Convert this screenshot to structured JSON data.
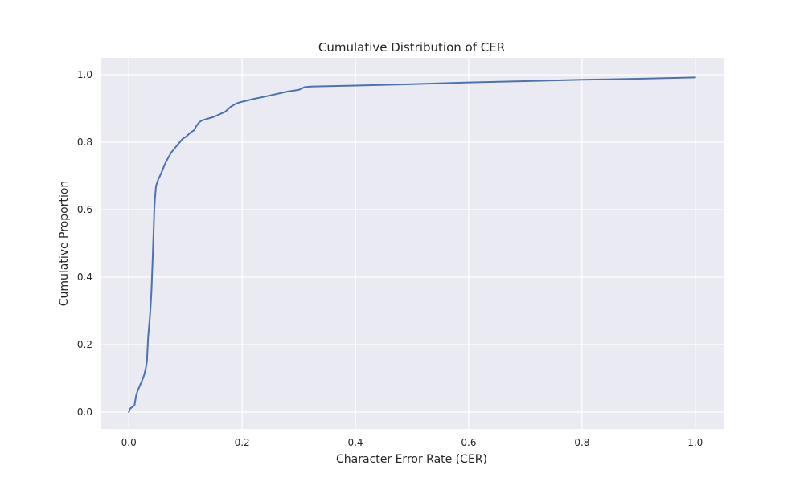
{
  "chart_data": {
    "type": "line",
    "title": "Cumulative Distribution of CER",
    "xlabel": "Character Error Rate (CER)",
    "ylabel": "Cumulative Proportion",
    "xlim": [
      -0.05,
      1.05
    ],
    "ylim": [
      -0.05,
      1.05
    ],
    "xticks": [
      0.0,
      0.2,
      0.4,
      0.6,
      0.8,
      1.0
    ],
    "xtick_labels": [
      "0.0",
      "0.2",
      "0.4",
      "0.6",
      "0.8",
      "1.0"
    ],
    "yticks": [
      0.0,
      0.2,
      0.4,
      0.6,
      0.8,
      1.0
    ],
    "ytick_labels": [
      "0.0",
      "0.2",
      "0.4",
      "0.6",
      "0.8",
      "1.0"
    ],
    "grid": true,
    "colors": {
      "background": "#eaeaf2",
      "grid": "#ffffff",
      "line": "#4c72b0"
    },
    "series": [
      {
        "x": [
          0.0,
          0.002,
          0.01,
          0.013,
          0.016,
          0.02,
          0.025,
          0.027,
          0.03,
          0.032,
          0.034,
          0.036,
          0.038,
          0.04,
          0.042,
          0.044,
          0.045,
          0.046,
          0.047,
          0.048,
          0.05,
          0.052,
          0.055,
          0.06,
          0.065,
          0.07,
          0.075,
          0.08,
          0.085,
          0.09,
          0.095,
          0.1,
          0.11,
          0.115,
          0.12,
          0.125,
          0.13,
          0.15,
          0.17,
          0.18,
          0.185,
          0.19,
          0.2,
          0.22,
          0.24,
          0.28,
          0.3,
          0.31,
          0.32,
          0.4,
          0.5,
          0.6,
          0.7,
          0.8,
          0.9,
          1.0
        ],
        "y": [
          0.0,
          0.01,
          0.02,
          0.05,
          0.065,
          0.08,
          0.1,
          0.11,
          0.13,
          0.15,
          0.22,
          0.26,
          0.3,
          0.36,
          0.45,
          0.55,
          0.6,
          0.63,
          0.65,
          0.67,
          0.68,
          0.69,
          0.7,
          0.72,
          0.74,
          0.755,
          0.77,
          0.78,
          0.79,
          0.8,
          0.81,
          0.815,
          0.83,
          0.835,
          0.85,
          0.86,
          0.865,
          0.875,
          0.89,
          0.905,
          0.91,
          0.915,
          0.92,
          0.928,
          0.935,
          0.95,
          0.955,
          0.963,
          0.965,
          0.968,
          0.972,
          0.977,
          0.981,
          0.985,
          0.988,
          0.992
        ]
      }
    ]
  }
}
